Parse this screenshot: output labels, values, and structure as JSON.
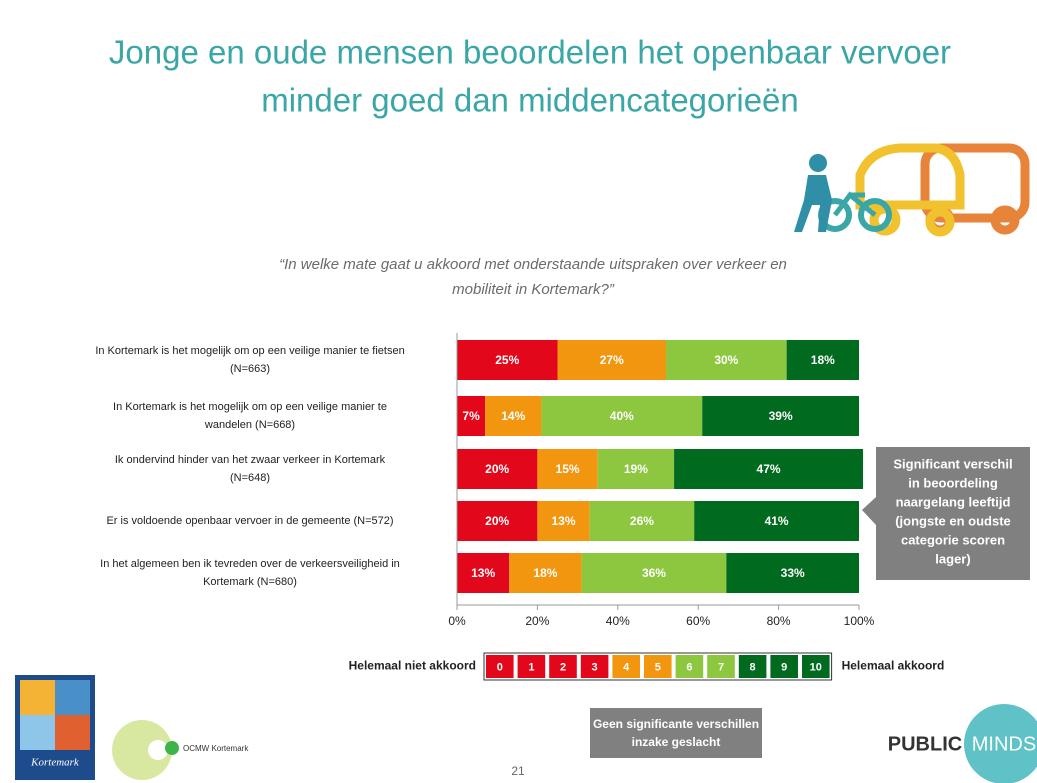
{
  "chart_data": {
    "type": "stacked-bar-horizontal",
    "title": [
      "Jonge en oude mensen beoordelen het openbaar vervoer",
      "minder goed dan middencategorieën"
    ],
    "subtitle": [
      "“In welke mate gaat u akkoord met onderstaande uitspraken over verkeer en",
      "mobiliteit in Kortemark?”"
    ],
    "categories": [
      [
        "In Kortemark is het mogelijk om op een veilige manier te fietsen",
        "(N=663)"
      ],
      [
        "In Kortemark is het mogelijk om op een veilige manier te",
        "wandelen (N=668)"
      ],
      [
        "Ik ondervind hinder van het zwaar verkeer in Kortemark",
        "(N=648)"
      ],
      [
        "Er is voldoende openbaar vervoer in de gemeente (N=572)"
      ],
      [
        "In het algemeen ben ik tevreden over de verkeersveiligheid in",
        "Kortemark (N=680)"
      ]
    ],
    "series": [
      {
        "color": "#e2071b",
        "values": [
          25,
          7,
          20,
          20,
          13
        ],
        "value_labels": [
          "25%",
          "7%",
          "20%",
          "20%",
          "13%"
        ]
      },
      {
        "color": "#f3960f",
        "values": [
          27,
          14,
          15,
          13,
          18
        ],
        "value_labels": [
          "27%",
          "14%",
          "15%",
          "13%",
          "18%"
        ]
      },
      {
        "color": "#8dc63f",
        "values": [
          30,
          40,
          19,
          26,
          36
        ],
        "value_labels": [
          "30%",
          "40%",
          "19%",
          "26%",
          "36%"
        ]
      },
      {
        "color": "#006a1f",
        "values": [
          18,
          39,
          47,
          41,
          33
        ],
        "value_labels": [
          "18%",
          "39%",
          "47%",
          "41%",
          "33%"
        ]
      }
    ],
    "xlim": [
      0,
      100
    ],
    "xticks": [
      {
        "value": 0,
        "label": "0%"
      },
      {
        "value": 20,
        "label": "20%"
      },
      {
        "value": 40,
        "label": "40%"
      },
      {
        "value": 60,
        "label": "60%"
      },
      {
        "value": 80,
        "label": "80%"
      },
      {
        "value": 100,
        "label": "100%"
      }
    ],
    "scale_legend": {
      "left_label": "Helemaal niet akkoord",
      "right_label": "Helemaal akkoord",
      "items": [
        {
          "label": "0",
          "color": "#e2071b"
        },
        {
          "label": "1",
          "color": "#e2071b"
        },
        {
          "label": "2",
          "color": "#e2071b"
        },
        {
          "label": "3",
          "color": "#e2071b"
        },
        {
          "label": "4",
          "color": "#f3960f"
        },
        {
          "label": "5",
          "color": "#f3960f"
        },
        {
          "label": "6",
          "color": "#8dc63f"
        },
        {
          "label": "7",
          "color": "#8dc63f"
        },
        {
          "label": "8",
          "color": "#006a1f"
        },
        {
          "label": "9",
          "color": "#006a1f"
        },
        {
          "label": "10",
          "color": "#006a1f"
        }
      ]
    }
  },
  "callout": [
    "Significant verschil",
    "in beoordeling",
    "naargelang leeftijd",
    "(jongste en oudste",
    "categorie scoren",
    "lager)"
  ],
  "note": [
    "Geen significante verschillen",
    "inzake geslacht"
  ],
  "page_number": "21",
  "logos": {
    "kortemark": "Kortemark",
    "ocmw": "OCMW  Kortemark",
    "publicminds": [
      "PUBLIC",
      "MINDS"
    ]
  }
}
